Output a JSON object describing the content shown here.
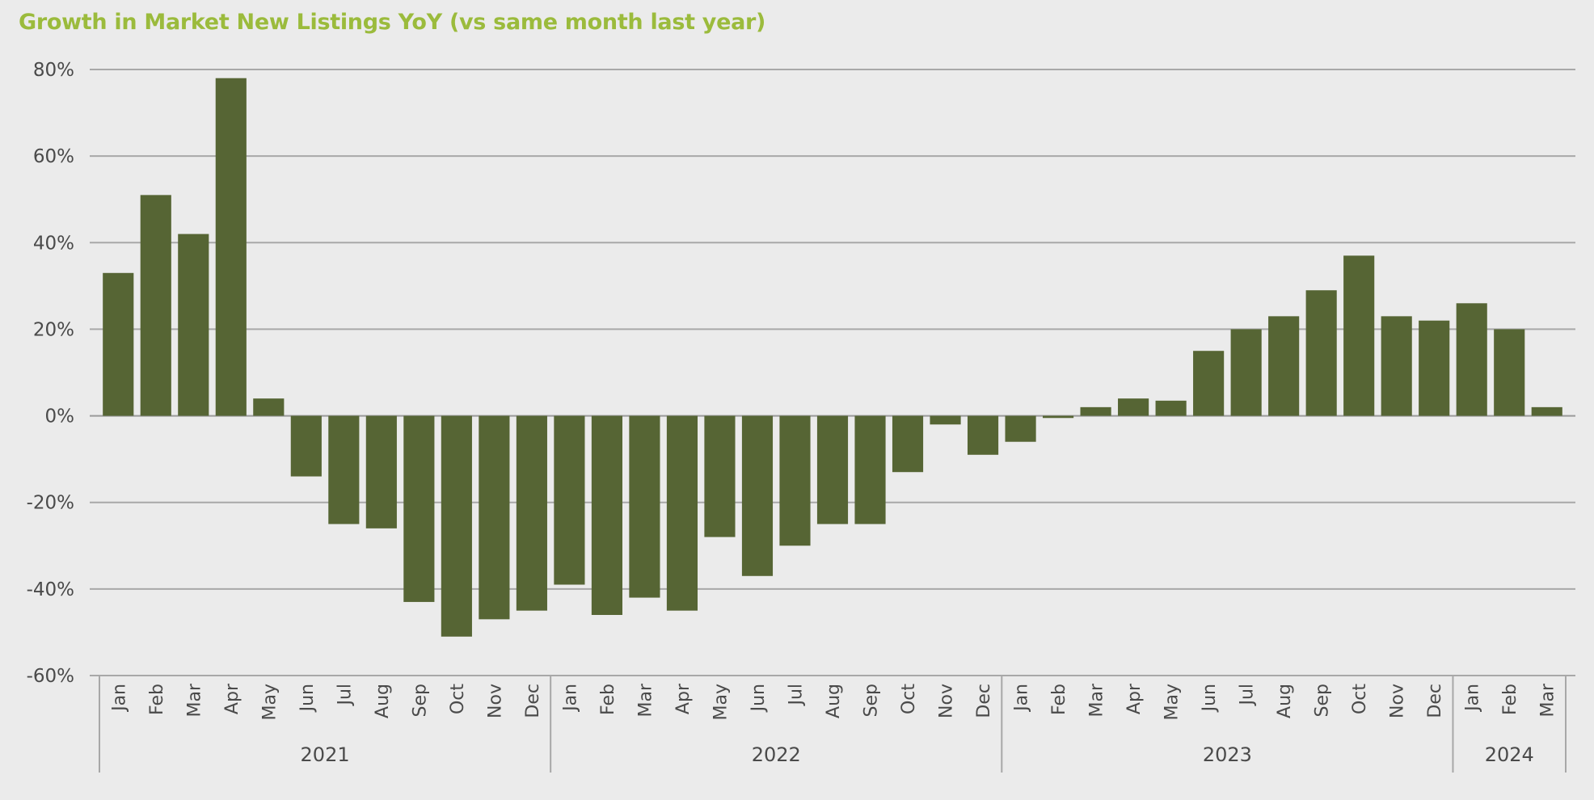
{
  "chart_data": {
    "type": "bar",
    "title": "Growth in Market New Listings YoY (vs same month last year)",
    "xlabel": "",
    "ylabel": "",
    "ylim": [
      -60,
      80
    ],
    "yticks": [
      80,
      60,
      40,
      20,
      0,
      -20,
      -40,
      -60
    ],
    "ytick_labels": [
      "80%",
      "60%",
      "40%",
      "20%",
      "0%",
      "-20%",
      "-40%",
      "-60%"
    ],
    "grid": true,
    "bar_color": "#566534",
    "groups": [
      {
        "year": "2021",
        "months": [
          "Jan",
          "Feb",
          "Mar",
          "Apr",
          "May",
          "Jun",
          "Jul",
          "Aug",
          "Sep",
          "Oct",
          "Nov",
          "Dec"
        ],
        "values": [
          33,
          51,
          42,
          78,
          4,
          -14,
          -25,
          -26,
          -43,
          -51,
          -47,
          -45
        ]
      },
      {
        "year": "2022",
        "months": [
          "Jan",
          "Feb",
          "Mar",
          "Apr",
          "May",
          "Jun",
          "Jul",
          "Aug",
          "Sep",
          "Oct",
          "Nov",
          "Dec"
        ],
        "values": [
          -39,
          -46,
          -42,
          -45,
          -28,
          -37,
          -30,
          -25,
          -25,
          -13,
          -2,
          -9
        ]
      },
      {
        "year": "2023",
        "months": [
          "Jan",
          "Feb",
          "Mar",
          "Apr",
          "May",
          "Jun",
          "Jul",
          "Aug",
          "Sep",
          "Oct",
          "Nov",
          "Dec"
        ],
        "values": [
          -6,
          -0.5,
          2,
          4,
          3.5,
          15,
          20,
          23,
          29,
          37,
          23,
          22
        ]
      },
      {
        "year": "2024",
        "months": [
          "Jan",
          "Feb",
          "Mar"
        ],
        "values": [
          26,
          20,
          2
        ]
      }
    ]
  }
}
